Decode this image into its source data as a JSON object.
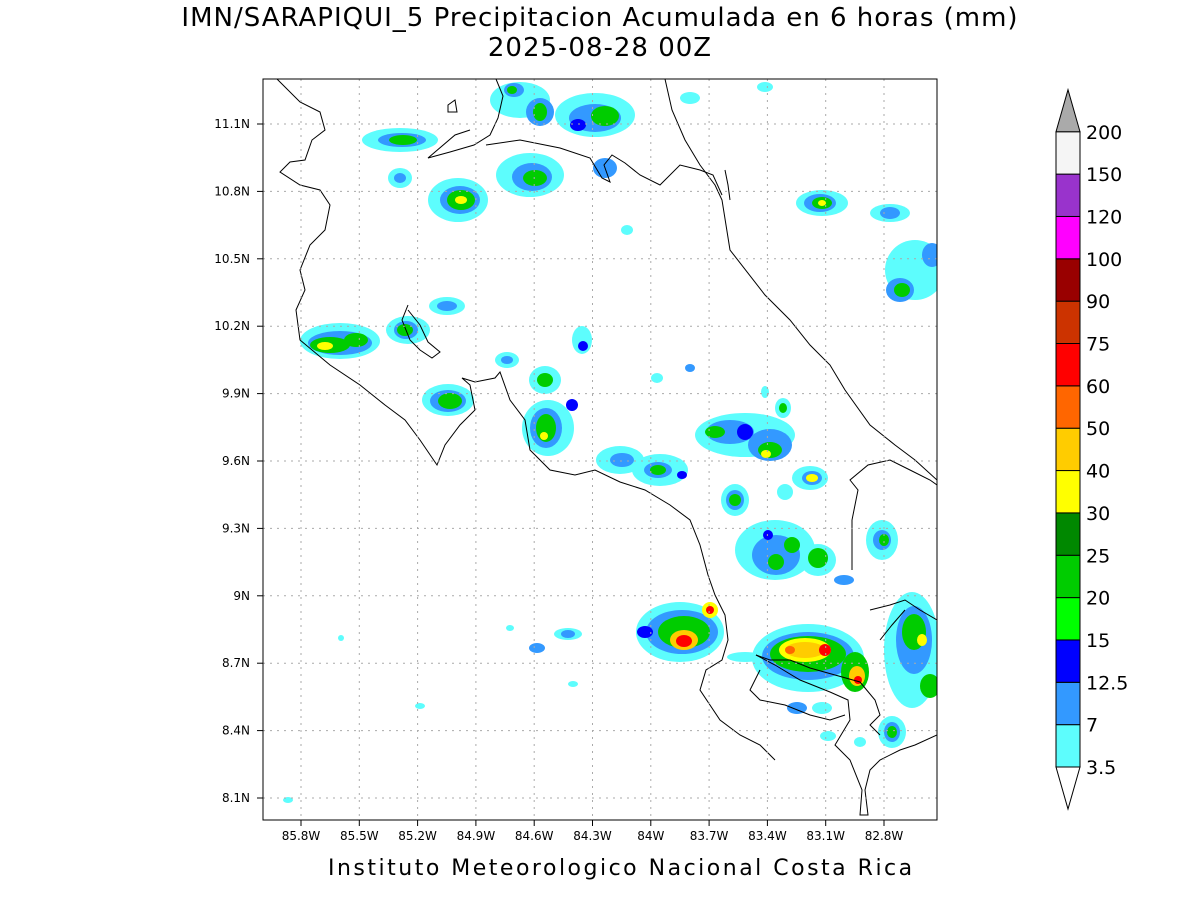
{
  "title_line1": "IMN/SARAPIQUI_5 Precipitacion Acumulada en 6 horas (mm)",
  "title_line2": "2025-08-28 00Z",
  "footer": "Instituto Meteorologico Nacional Costa Rica",
  "map": {
    "lon_ticks": [
      "85.8W",
      "85.5W",
      "85.2W",
      "84.9W",
      "84.6W",
      "84.3W",
      "84W",
      "83.7W",
      "83.4W",
      "83.1W",
      "82.8W"
    ],
    "lat_ticks": [
      "11.1N",
      "10.8N",
      "10.5N",
      "10.2N",
      "9.9N",
      "9.6N",
      "9.3N",
      "9N",
      "8.7N",
      "8.4N",
      "8.1N"
    ],
    "grid": "dotted"
  },
  "colorbar": {
    "labels": [
      "3.5",
      "7",
      "12.5",
      "15",
      "20",
      "25",
      "30",
      "40",
      "50",
      "60",
      "75",
      "90",
      "100",
      "120",
      "150",
      "200"
    ],
    "colors": [
      "#ffffff",
      "#5dfdfd",
      "#3399ff",
      "#0000ff",
      "#00ff00",
      "#00cc00",
      "#008800",
      "#ffff00",
      "#ffcc00",
      "#ff6600",
      "#ff0000",
      "#cc3300",
      "#990000",
      "#ff00ff",
      "#9933cc",
      "#f5f5f5"
    ],
    "over_color": "#aaaaaa",
    "under_color": "#ffffff"
  }
}
